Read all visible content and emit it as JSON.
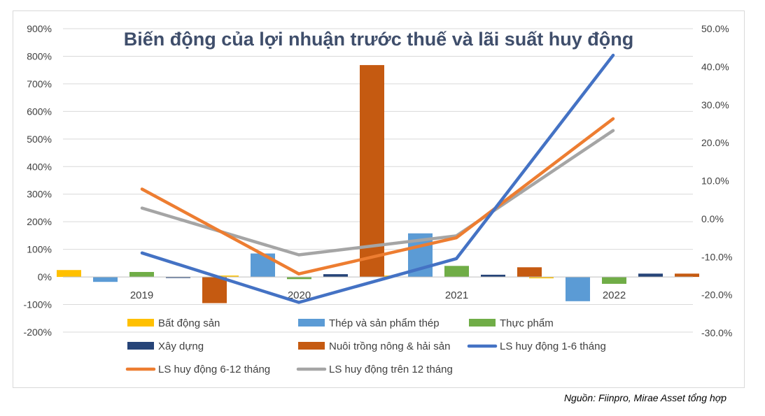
{
  "chart_data": {
    "type": "bar",
    "title": "Biến động của lợi nhuận trước thuế và lãi suất huy động",
    "categories": [
      "2019",
      "2020",
      "2021",
      "2022"
    ],
    "left_axis": {
      "ylim": [
        -200,
        900
      ],
      "ticks": [
        900,
        800,
        700,
        600,
        500,
        400,
        300,
        200,
        100,
        0,
        -100,
        -200
      ],
      "tick_labels": [
        "900%",
        "800%",
        "700%",
        "600%",
        "500%",
        "400%",
        "300%",
        "200%",
        "100%",
        "0%",
        "-100%",
        "-200%"
      ]
    },
    "right_axis": {
      "ylim": [
        -30,
        50
      ],
      "ticks": [
        50,
        40,
        30,
        20,
        10,
        0,
        -10,
        -20,
        -30
      ],
      "tick_labels": [
        "50.0%",
        "40.0%",
        "30.0%",
        "20.0%",
        "10.0%",
        "0.0%",
        "-10.0%",
        "-20.0%",
        "-30.0%"
      ]
    },
    "bar_series": [
      {
        "name": "Bất động sản",
        "color": "#ffc000",
        "values": [
          25,
          5,
          5,
          -5
        ]
      },
      {
        "name": "Thép và sản phẩm thép",
        "color": "#5b9bd5",
        "values": [
          -18,
          85,
          158,
          -88
        ]
      },
      {
        "name": "Thực phẩm",
        "color": "#70ad47",
        "values": [
          18,
          -8,
          40,
          -25
        ]
      },
      {
        "name": "Xây dựng",
        "color": "#264478",
        "values": [
          0,
          10,
          8,
          12
        ]
      },
      {
        "name": "Nuôi trồng nông & hải sản",
        "color": "#c55a11",
        "values": [
          -95,
          768,
          35,
          12
        ]
      }
    ],
    "line_series": [
      {
        "name": "LS huy động 1-6 tháng",
        "color": "#4472c4",
        "values": [
          -9,
          -22,
          -10.5,
          43
        ]
      },
      {
        "name": "LS huy động 6-12 tháng",
        "color": "#ed7d31",
        "values": [
          7.8,
          -14.5,
          -5,
          26.3
        ]
      },
      {
        "name": "LS huy động trên 12 tháng",
        "color": "#a5a5a5",
        "values": [
          2.8,
          -9.5,
          -4.5,
          23.2
        ]
      }
    ],
    "legend_rows": [
      [
        "Bất động sản",
        "Thép và sản phẩm thép",
        "Thực phẩm"
      ],
      [
        "Xây dựng",
        "Nuôi trồng nông & hải sản",
        "LS huy động 1-6 tháng"
      ],
      [
        "LS huy động 6-12 tháng",
        "LS huy động trên 12 tháng"
      ]
    ],
    "grid": true,
    "legend_position": "bottom"
  },
  "source_note": "Nguồn: Fiinpro, Mirae Asset tổng hợp"
}
